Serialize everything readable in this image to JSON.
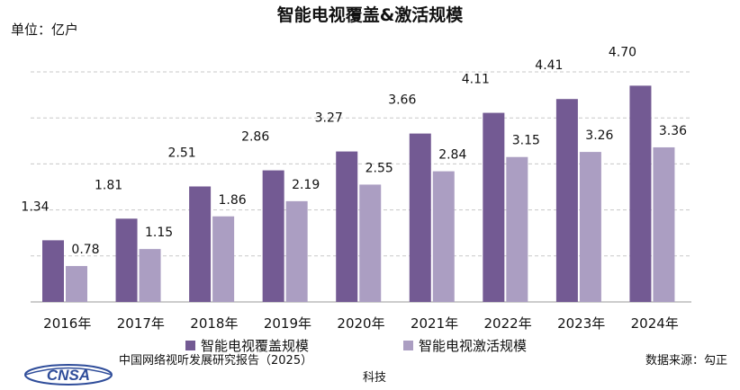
{
  "header": {
    "title": "智能电视覆盖&激活规模",
    "unit": "单位：亿户"
  },
  "chart_data": {
    "type": "bar",
    "categories": [
      "2016年",
      "2017年",
      "2018年",
      "2019年",
      "2020年",
      "2021年",
      "2022年",
      "2023年",
      "2024年"
    ],
    "series": [
      {
        "name": "智能电视覆盖规模",
        "values": [
          1.34,
          1.81,
          2.51,
          2.86,
          3.27,
          3.66,
          4.11,
          4.41,
          4.7
        ],
        "color": "#735a93"
      },
      {
        "name": "智能电视激活规模",
        "values": [
          0.78,
          1.15,
          1.86,
          2.19,
          2.55,
          2.84,
          3.15,
          3.26,
          3.36
        ],
        "color": "#ab9ec2"
      }
    ],
    "value_labels": [
      [
        "1.34",
        "1.81",
        "2.51",
        "2.86",
        "3.27",
        "3.66",
        "4.11",
        "4.41",
        "4.70"
      ],
      [
        "0.78",
        "1.15",
        "1.86",
        "2.19",
        "2.55",
        "2.84",
        "3.15",
        "3.26",
        "3.36"
      ]
    ],
    "ylim": [
      0,
      5
    ],
    "grid": true,
    "legend_position": "bottom"
  },
  "footer": {
    "source_left": "中国网络视听发展研究报告（2025）",
    "source_right": "数据来源：勾正",
    "brand_sub": "科技",
    "logo_text": "CNSA"
  }
}
